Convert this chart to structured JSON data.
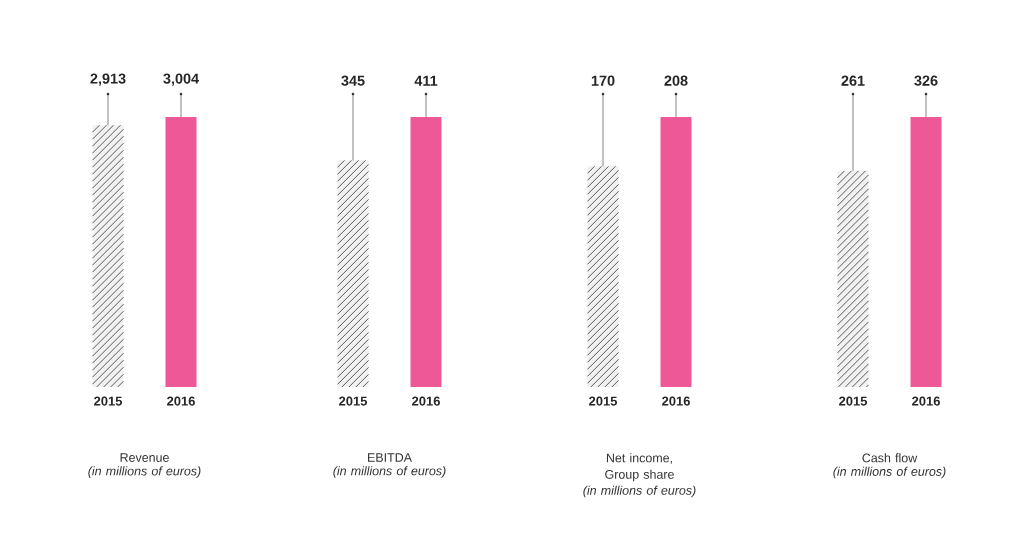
{
  "chart_data": [
    {
      "type": "bar",
      "title": "Revenue",
      "subtitle": "(in millions of euros)",
      "categories": [
        "2015",
        "2016"
      ],
      "values": [
        2913,
        3004
      ],
      "value_labels": [
        "2,913",
        "3,004"
      ],
      "colors": [
        "#f1f1f1",
        "#ef5896"
      ],
      "tick_labels": "x"
    },
    {
      "type": "bar",
      "title": "EBITDA",
      "subtitle": "(in millions of euros)",
      "categories": [
        "2015",
        "2016"
      ],
      "values": [
        345,
        411
      ],
      "value_labels": [
        "345",
        "411"
      ],
      "colors": [
        "#f1f1f1",
        "#ef5896"
      ],
      "tick_labels": "x"
    },
    {
      "type": "bar",
      "title": "Net income, Group share",
      "subtitle": "(in millions of euros)",
      "categories": [
        "2015",
        "2016"
      ],
      "values": [
        170,
        208
      ],
      "value_labels": [
        "170",
        "208"
      ],
      "colors": [
        "#f1f1f1",
        "#ef5896"
      ],
      "tick_labels": "x"
    },
    {
      "type": "bar",
      "title": "Cash flow",
      "subtitle": "(in millions of euros)",
      "categories": [
        "2015",
        "2016"
      ],
      "values": [
        261,
        326
      ],
      "value_labels": [
        "261",
        "326"
      ],
      "colors": [
        "#f1f1f1",
        "#ef5896"
      ],
      "tick_labels": "x"
    }
  ]
}
